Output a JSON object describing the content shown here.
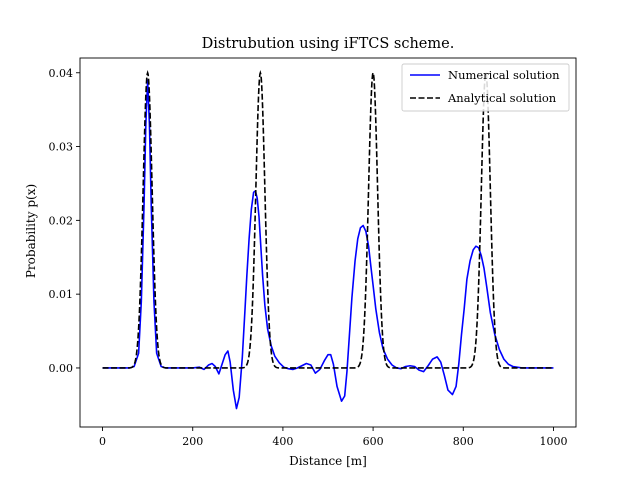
{
  "chart_data": {
    "type": "line",
    "title": "Distrubution using iFTCS scheme.",
    "xlabel": "Distance [m]",
    "ylabel": "Probability p(x)",
    "xlim": [
      -50,
      1050
    ],
    "ylim": [
      -0.008,
      0.042
    ],
    "xticks": [
      0,
      200,
      400,
      600,
      800,
      1000
    ],
    "xtick_labels": [
      "0",
      "200",
      "400",
      "600",
      "800",
      "1000"
    ],
    "yticks": [
      0.0,
      0.01,
      0.02,
      0.03,
      0.04
    ],
    "ytick_labels": [
      "0.00",
      "0.01",
      "0.02",
      "0.03",
      "0.04"
    ],
    "grid": false,
    "legend_position": "top-right",
    "series": [
      {
        "name": "Numerical solution",
        "color": "#0000ff",
        "style": "solid",
        "x": [
          0,
          60,
          70,
          80,
          86,
          92,
          96,
          100,
          104,
          108,
          114,
          120,
          130,
          140,
          160,
          180,
          200,
          215,
          225,
          235,
          243,
          250,
          258,
          265,
          272,
          278,
          283,
          290,
          297,
          303,
          310,
          316,
          320,
          325,
          330,
          335,
          339,
          343,
          347,
          351,
          355,
          360,
          366,
          374,
          382,
          392,
          402,
          412,
          422,
          432,
          442,
          452,
          462,
          472,
          482,
          492,
          500,
          506,
          512,
          520,
          530,
          537,
          542,
          547,
          553,
          560,
          566,
          572,
          578,
          584,
          590,
          595,
          600,
          606,
          614,
          622,
          632,
          642,
          652,
          662,
          672,
          682,
          692,
          702,
          712,
          722,
          732,
          742,
          750,
          758,
          766,
          776,
          784,
          790,
          796,
          802,
          808,
          815,
          822,
          828,
          834,
          840,
          846,
          852,
          860,
          870,
          880,
          890,
          900,
          910,
          930,
          950,
          1000
        ],
        "y": [
          0.0,
          0.0,
          0.0002,
          0.002,
          0.009,
          0.022,
          0.033,
          0.039,
          0.033,
          0.022,
          0.009,
          0.002,
          0.0002,
          0.0,
          0.0,
          0.0,
          0.0,
          0.0001,
          -0.0002,
          0.0004,
          0.0006,
          0.0002,
          -0.0008,
          0.0005,
          0.0018,
          0.0023,
          0.0008,
          -0.003,
          -0.0055,
          -0.004,
          0.0015,
          0.008,
          0.0125,
          0.0175,
          0.0215,
          0.0238,
          0.024,
          0.023,
          0.0205,
          0.0165,
          0.0125,
          0.0085,
          0.0053,
          0.003,
          0.0016,
          0.0007,
          0.0001,
          -0.0001,
          -0.0002,
          0.0,
          0.0003,
          0.0006,
          0.0004,
          -0.0007,
          -0.0002,
          0.001,
          0.0018,
          0.0018,
          0.0005,
          -0.0025,
          -0.0045,
          -0.0038,
          -0.0005,
          0.004,
          0.0095,
          0.0145,
          0.0175,
          0.019,
          0.0193,
          0.0185,
          0.0165,
          0.0138,
          0.0112,
          0.008,
          0.0048,
          0.0026,
          0.0012,
          0.0004,
          0.0,
          -0.0001,
          0.0002,
          0.0003,
          0.0002,
          -0.0003,
          -0.0005,
          0.0003,
          0.0012,
          0.0015,
          0.0008,
          -0.001,
          -0.003,
          -0.0036,
          -0.0025,
          0.0005,
          0.0045,
          0.008,
          0.012,
          0.0145,
          0.016,
          0.0165,
          0.0163,
          0.0152,
          0.0135,
          0.011,
          0.0075,
          0.0045,
          0.0025,
          0.0012,
          0.0005,
          0.0002,
          0.0,
          0.0,
          0.0
        ]
      },
      {
        "name": "Analytical solution",
        "color": "#000000",
        "style": "dashed",
        "gaussian_peaks": [
          {
            "center": 100,
            "height": 0.04,
            "sigma": 10
          },
          {
            "center": 350,
            "height": 0.04,
            "sigma": 10
          },
          {
            "center": 600,
            "height": 0.04,
            "sigma": 10
          },
          {
            "center": 850,
            "height": 0.04,
            "sigma": 10
          }
        ],
        "x_range": [
          0,
          1000
        ]
      }
    ]
  }
}
